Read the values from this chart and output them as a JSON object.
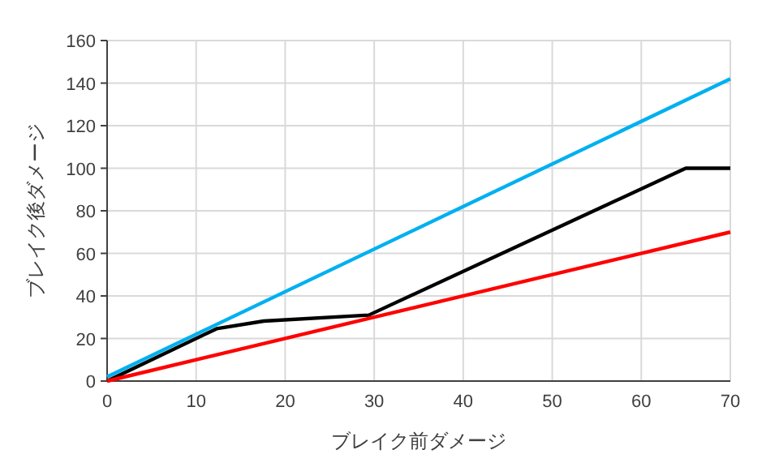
{
  "chart_data": {
    "type": "line",
    "xlabel": "ブレイク前ダメージ",
    "ylabel": "ブレイク後ダメージ",
    "xlim": [
      0,
      70
    ],
    "ylim": [
      0,
      160
    ],
    "xticks": [
      0,
      10,
      20,
      30,
      40,
      50,
      60,
      70
    ],
    "yticks": [
      0,
      20,
      40,
      60,
      80,
      100,
      120,
      140,
      160
    ],
    "grid": true,
    "series": [
      {
        "color": "#00b0f0",
        "x": [
          0,
          70
        ],
        "values": [
          2,
          142
        ]
      },
      {
        "color": "#000000",
        "x": [
          0,
          12.3,
          17.6,
          29.4,
          65,
          70
        ],
        "values": [
          0,
          24.6,
          28.2,
          31,
          100,
          100
        ]
      },
      {
        "color": "#ff0000",
        "x": [
          0,
          70
        ],
        "values": [
          0,
          70
        ]
      }
    ]
  }
}
